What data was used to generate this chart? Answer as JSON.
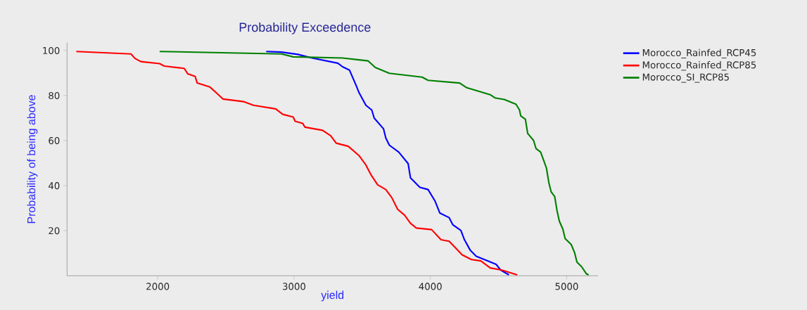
{
  "chart_data": {
    "type": "line",
    "title": "Probability Exceedence",
    "xlabel": "yield",
    "ylabel": "Probability of being above",
    "xlim": [
      1335,
      5230
    ],
    "ylim": [
      0,
      103.5
    ],
    "xticks": [
      2000,
      3000,
      4000,
      5000
    ],
    "yticks": [
      20,
      40,
      60,
      80,
      100
    ],
    "grid": false,
    "legend": "right",
    "marker": "none",
    "line_style": "solid",
    "series": [
      {
        "name": "Morocco_Rainfed_RCP45",
        "color": "#0000ff",
        "x": [
          2796,
          2908,
          3028,
          3132,
          3321,
          3356,
          3407,
          3459,
          3476,
          3527,
          3570,
          3588,
          3656,
          3673,
          3699,
          3768,
          3837,
          3854,
          3923,
          3983,
          4035,
          4069,
          4138,
          4164,
          4224,
          4250,
          4293,
          4336,
          4422,
          4482,
          4517,
          4576
        ],
        "values": [
          99.6,
          99.3,
          98.3,
          96.7,
          94.4,
          92.8,
          91.3,
          84.0,
          81.4,
          75.7,
          73.6,
          70.0,
          65.3,
          61.2,
          58.0,
          54.9,
          49.8,
          43.5,
          39.3,
          38.3,
          33.1,
          27.9,
          25.8,
          22.7,
          20.1,
          16.0,
          11.3,
          8.7,
          6.6,
          5.1,
          2.5,
          0.4
        ]
      },
      {
        "name": "Morocco_Rainfed_RCP85",
        "color": "#ff0000",
        "x": [
          1403,
          1804,
          1833,
          1876,
          2014,
          2048,
          2194,
          2220,
          2275,
          2289,
          2383,
          2427,
          2478,
          2633,
          2702,
          2865,
          2917,
          2994,
          3008,
          3063,
          3080,
          3209,
          3269,
          3309,
          3398,
          3476,
          3527,
          3562,
          3613,
          3673,
          3717,
          3760,
          3811,
          3854,
          3897,
          4009,
          4078,
          4138,
          4233,
          4301,
          4370,
          4439,
          4525,
          4637
        ],
        "values": [
          99.6,
          98.5,
          96.5,
          95.1,
          94.2,
          93.1,
          92.1,
          89.7,
          88.5,
          85.6,
          83.8,
          81.4,
          78.5,
          77.3,
          75.7,
          74.1,
          71.7,
          70.5,
          68.6,
          67.7,
          66.0,
          64.6,
          62.2,
          58.9,
          57.5,
          53.4,
          49.2,
          45.1,
          40.4,
          38.3,
          34.7,
          29.5,
          26.9,
          23.3,
          21.2,
          20.5,
          16.0,
          15.3,
          9.3,
          7.2,
          6.6,
          3.5,
          2.5,
          0.4
        ]
      },
      {
        "name": "Morocco_SI_RCP85",
        "color": "#008000",
        "x": [
          2014,
          2908,
          2994,
          3356,
          3544,
          3596,
          3699,
          3940,
          3983,
          4215,
          4267,
          4439,
          4473,
          4542,
          4628,
          4654,
          4663,
          4697,
          4714,
          4757,
          4775,
          4809,
          4834,
          4852,
          4869,
          4886,
          4912,
          4929,
          4946,
          4972,
          4989,
          5033,
          5058,
          5075,
          5110,
          5144,
          5161
        ],
        "values": [
          99.6,
          98.5,
          97.2,
          96.7,
          95.4,
          92.5,
          89.9,
          88.2,
          86.8,
          85.6,
          83.5,
          80.4,
          79.0,
          78.3,
          76.2,
          73.6,
          71.0,
          69.5,
          63.2,
          60.1,
          56.5,
          54.9,
          50.8,
          47.7,
          41.4,
          37.3,
          35.2,
          29.0,
          24.3,
          20.7,
          16.5,
          13.9,
          10.3,
          6.1,
          4.0,
          0.9,
          0.4
        ]
      }
    ]
  }
}
